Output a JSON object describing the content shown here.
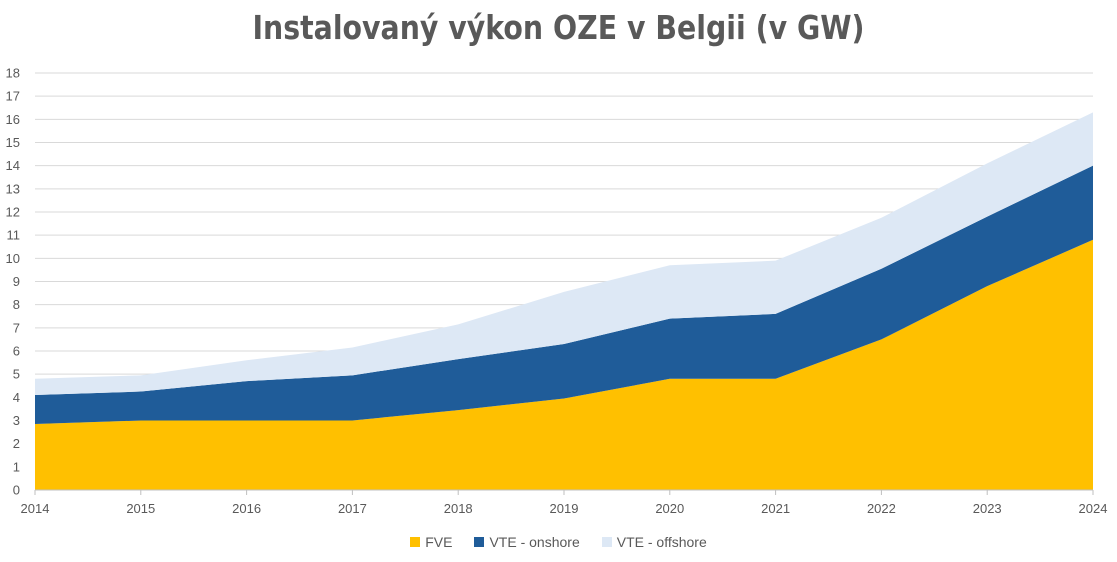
{
  "chart_data": {
    "type": "area",
    "stacked": true,
    "title": "Instalovaný výkon OZE v Belgii (v GW)",
    "xlabel": "",
    "ylabel": "",
    "x": [
      "2014",
      "2015",
      "2016",
      "2017",
      "2018",
      "2019",
      "2020",
      "2021",
      "2022",
      "2023",
      "2024"
    ],
    "ylim": [
      0,
      18
    ],
    "yticks": [
      0,
      1,
      2,
      3,
      4,
      5,
      6,
      7,
      8,
      9,
      10,
      11,
      12,
      13,
      14,
      15,
      16,
      17,
      18
    ],
    "grid": true,
    "legend_position": "bottom",
    "series": [
      {
        "name": "FVE",
        "color": "#FFC000",
        "values": [
          2.85,
          3.0,
          3.0,
          3.0,
          3.45,
          3.95,
          4.8,
          4.8,
          6.5,
          8.8,
          10.8
        ]
      },
      {
        "name": "VTE - onshore",
        "color": "#1F5C99",
        "values": [
          1.25,
          1.25,
          1.7,
          1.95,
          2.2,
          2.35,
          2.6,
          2.8,
          3.05,
          3.0,
          3.2
        ]
      },
      {
        "name": "VTE - offshore",
        "color": "#DDE8F5",
        "values": [
          0.7,
          0.7,
          0.9,
          1.2,
          1.5,
          2.25,
          2.3,
          2.3,
          2.2,
          2.3,
          2.3
        ]
      }
    ]
  }
}
